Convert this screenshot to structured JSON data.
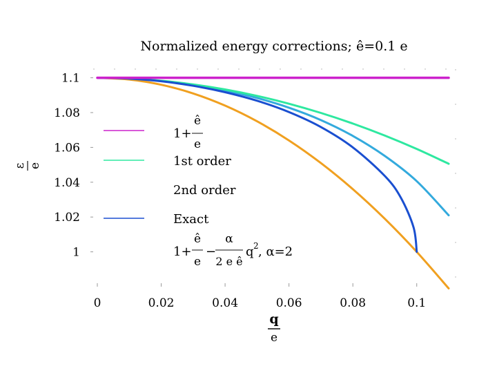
{
  "chart_data": {
    "type": "line",
    "title": "Normalized energy corrections; ê=0.1 e",
    "ylabel_num": "ε",
    "ylabel_den": "e",
    "xlabel_num": "q",
    "xlabel_den": "e",
    "xlim": [
      0,
      0.11
    ],
    "ylim": [
      0.98,
      1.105
    ],
    "x_ticks": [
      0,
      0.02,
      0.04,
      0.06,
      0.08,
      0.1
    ],
    "x_tick_labels": [
      "0",
      "0.02",
      "0.04",
      "0.06",
      "0.08",
      "0.1"
    ],
    "y_ticks": [
      1,
      1.02,
      1.04,
      1.06,
      1.08,
      1.1
    ],
    "y_tick_labels": [
      "1",
      "1.02",
      "1.04",
      "1.06",
      "1.08",
      "1.1"
    ],
    "legend_position": "left",
    "series": [
      {
        "name": "1+ ê/e",
        "color": "#cc22cc",
        "x": [
          0,
          0.11
        ],
        "y": [
          1.1,
          1.1
        ]
      },
      {
        "name": "1st order",
        "color": "#2ee8a0",
        "x": [
          0,
          0.01,
          0.02,
          0.03,
          0.04,
          0.05,
          0.06,
          0.07,
          0.08,
          0.09,
          0.1,
          0.11
        ],
        "y": [
          1.1,
          1.0996,
          1.0983,
          1.0962,
          1.0933,
          1.0896,
          1.0851,
          1.0798,
          1.0737,
          1.0668,
          1.0591,
          1.0506
        ]
      },
      {
        "name": "2nd order",
        "color": "#33aadd",
        "x": [
          0,
          0.01,
          0.02,
          0.03,
          0.04,
          0.05,
          0.06,
          0.07,
          0.08,
          0.09,
          0.1,
          0.11
        ],
        "y": [
          1.1,
          1.0996,
          1.0982,
          1.0959,
          1.0927,
          1.0884,
          1.0828,
          1.0757,
          1.0666,
          1.0551,
          1.0406,
          1.021
        ]
      },
      {
        "name": "Exact",
        "color": "#1a4fd0",
        "x": [
          0,
          0.01,
          0.02,
          0.03,
          0.04,
          0.05,
          0.06,
          0.07,
          0.08,
          0.09,
          0.095,
          0.099,
          0.1
        ],
        "y": [
          1.1,
          1.0995,
          1.098,
          1.0954,
          1.0917,
          1.0868,
          1.0803,
          1.0717,
          1.06,
          1.0436,
          1.0312,
          1.0141,
          1.0
        ]
      },
      {
        "name": "1+ ê/e − α/(2 e ê) q², α=2",
        "color": "#f0a020",
        "x": [
          0,
          0.01,
          0.02,
          0.03,
          0.04,
          0.05,
          0.06,
          0.07,
          0.08,
          0.09,
          0.1,
          0.11
        ],
        "y": [
          1.1,
          1.099,
          1.096,
          1.091,
          1.084,
          1.075,
          1.064,
          1.051,
          1.036,
          1.019,
          1.0,
          0.979
        ]
      }
    ],
    "legend_labels": {
      "s1_prefix": "1+",
      "s1_num": "ê",
      "s1_den": "e",
      "s2": "1st order",
      "s3": "2nd order",
      "s4": "Exact",
      "s5_prefix": "1+",
      "s5_num1": "ê",
      "s5_den1": "e",
      "s5_minus": "−",
      "s5_num2": "α",
      "s5_den2": "2 e ê",
      "s5_q": "q",
      "s5_exp": "2",
      "s5_suffix": ", α=2"
    }
  }
}
